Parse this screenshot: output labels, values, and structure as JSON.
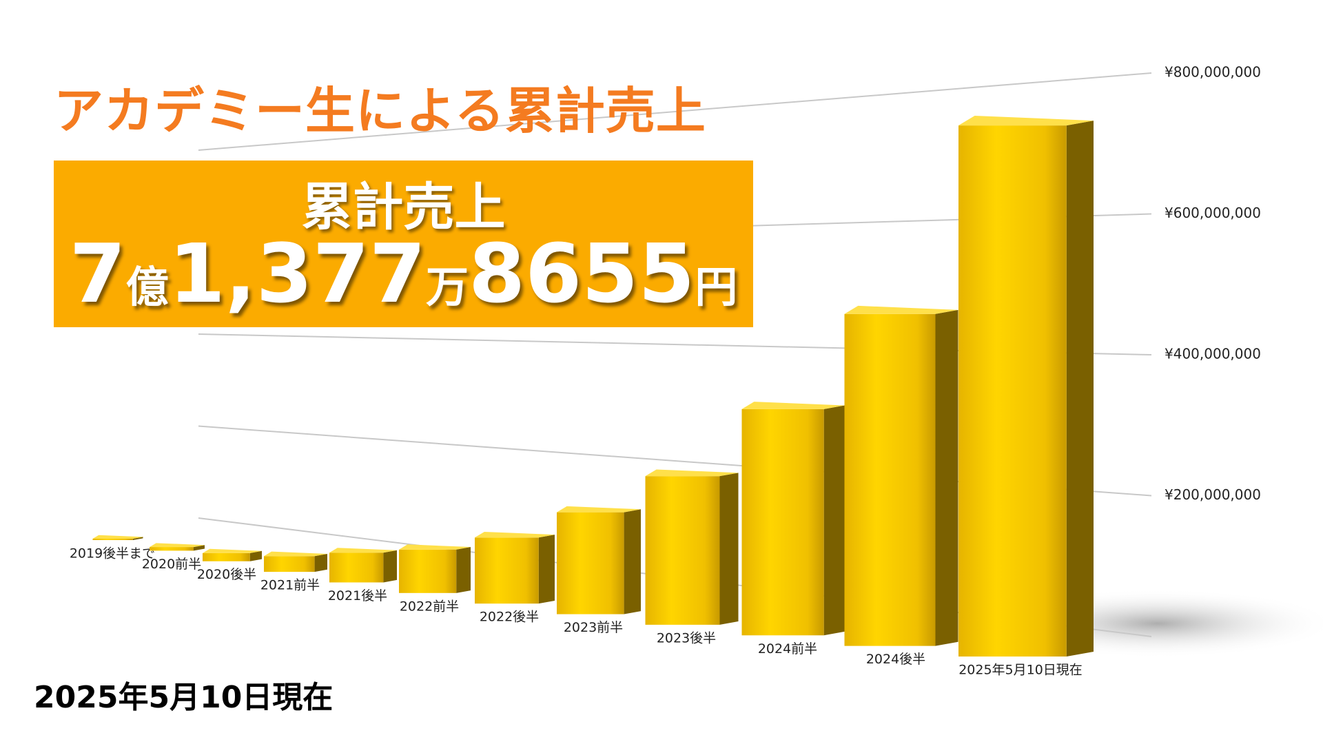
{
  "chart_data": {
    "type": "bar3d",
    "title": "アカデミー生による累計売上",
    "categories": [
      "2019後半まで",
      "2020前半",
      "2020後半",
      "2021前半",
      "2021後半",
      "2022前半",
      "2022後半",
      "2023前半",
      "2023後半",
      "2024前半",
      "2024後半",
      "2025年5月10日現在"
    ],
    "values": [
      5000000,
      12000000,
      25000000,
      45000000,
      80000000,
      110000000,
      150000000,
      220000000,
      290000000,
      400000000,
      530000000,
      713778655
    ],
    "color": "#f5c400",
    "ylim": [
      0,
      800000000
    ],
    "yticks": [
      {
        "value": 200000000,
        "label": "¥200,000,000"
      },
      {
        "value": 400000000,
        "label": "¥400,000,000"
      },
      {
        "value": 600000000,
        "label": "¥600,000,000"
      },
      {
        "value": 800000000,
        "label": "¥800,000,000"
      }
    ],
    "grid": true
  },
  "banner": {
    "heading": "累計売上",
    "amount_parts": [
      "7",
      "億",
      "1,377",
      "万",
      "8655",
      "円"
    ]
  },
  "footnote": "2025年5月10日現在"
}
